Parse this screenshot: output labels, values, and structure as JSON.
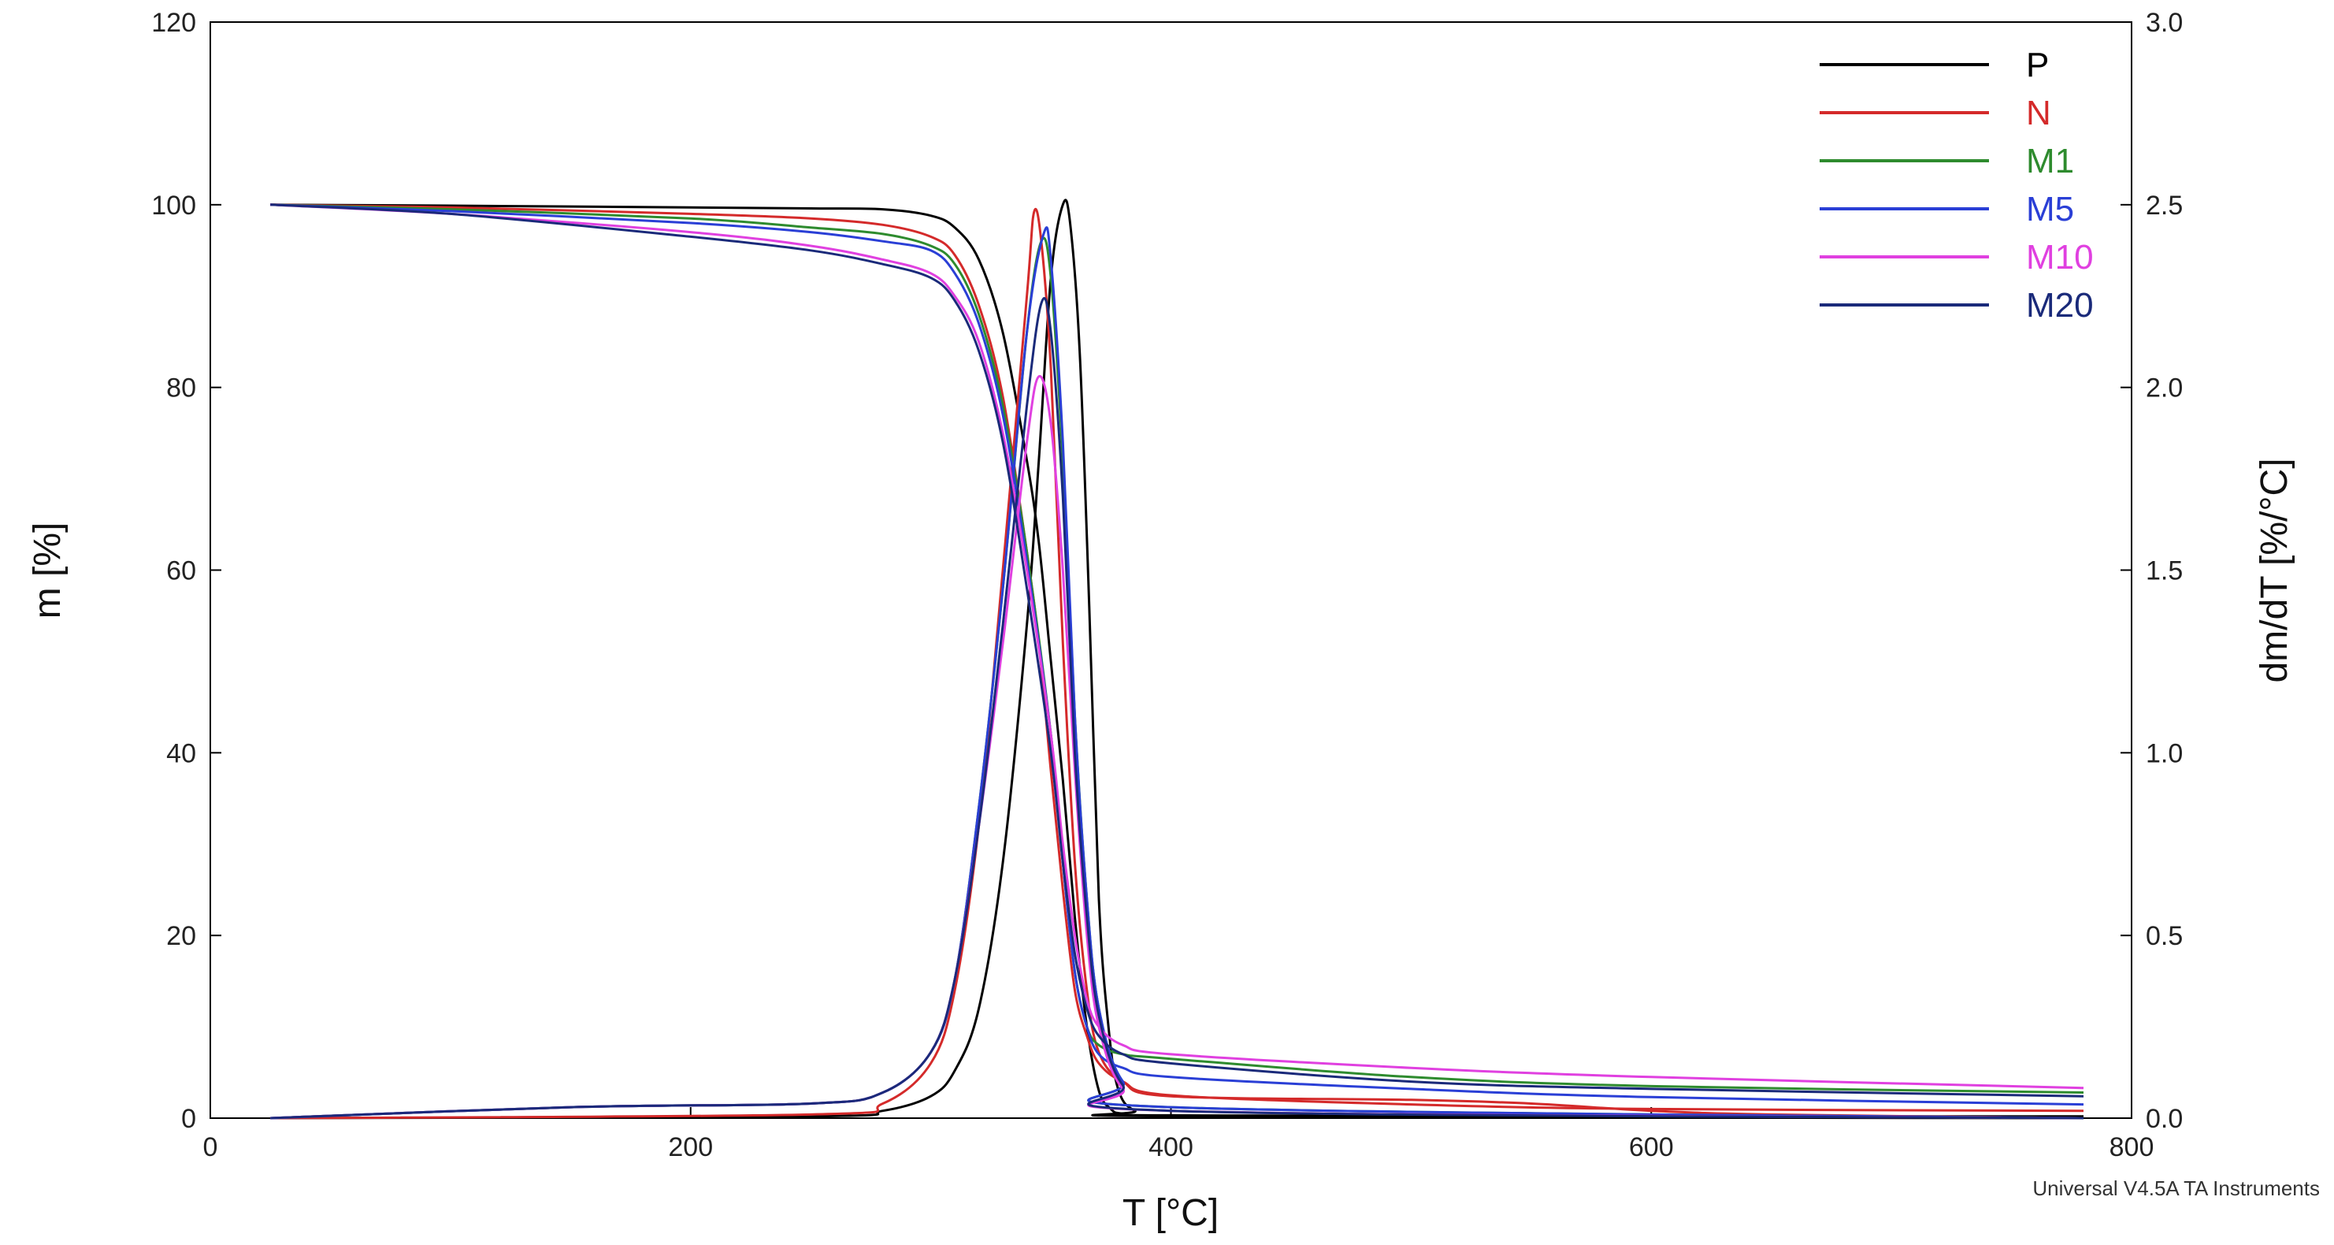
{
  "chart_data": {
    "type": "line",
    "xlabel": "T [°C]",
    "ylabel_left": "m [%]",
    "ylabel_right": "dm/dT [%/°C]",
    "xlim": [
      0,
      800
    ],
    "ylim_left": [
      0,
      120
    ],
    "ylim_right": [
      0.0,
      3.0
    ],
    "x_ticks": [
      "0",
      "200",
      "400",
      "600",
      "800"
    ],
    "y_left_ticks": [
      "0",
      "20",
      "40",
      "60",
      "80",
      "100",
      "120"
    ],
    "y_right_ticks": [
      "0.0",
      "0.5",
      "1.0",
      "1.5",
      "2.0",
      "2.5",
      "3.0"
    ],
    "grid": false,
    "legend_position": "top-right",
    "footer": "Universal V4.5A TA Instruments",
    "series": [
      {
        "name": "P",
        "color": "#000000",
        "mass": [
          [
            25,
            100
          ],
          [
            100,
            99.9
          ],
          [
            200,
            99.7
          ],
          [
            250,
            99.6
          ],
          [
            280,
            99.5
          ],
          [
            300,
            98.8
          ],
          [
            310,
            97.5
          ],
          [
            320,
            94
          ],
          [
            330,
            86
          ],
          [
            340,
            72
          ],
          [
            345,
            63
          ],
          [
            350,
            50
          ],
          [
            355,
            37
          ],
          [
            360,
            22
          ],
          [
            365,
            10
          ],
          [
            370,
            3
          ],
          [
            375,
            1
          ],
          [
            380,
            0.5
          ],
          [
            400,
            0.3
          ],
          [
            600,
            0.2
          ],
          [
            780,
            0.2
          ]
        ],
        "derivative": [
          [
            25,
            0
          ],
          [
            250,
            0.005
          ],
          [
            280,
            0.02
          ],
          [
            300,
            0.06
          ],
          [
            310,
            0.13
          ],
          [
            320,
            0.3
          ],
          [
            330,
            0.7
          ],
          [
            340,
            1.35
          ],
          [
            345,
            1.8
          ],
          [
            350,
            2.3
          ],
          [
            355,
            2.5
          ],
          [
            358,
            2.45
          ],
          [
            362,
            2.1
          ],
          [
            366,
            1.4
          ],
          [
            370,
            0.6
          ],
          [
            374,
            0.25
          ],
          [
            378,
            0.08
          ],
          [
            385,
            0.02
          ],
          [
            400,
            0.005
          ],
          [
            780,
            0
          ]
        ]
      },
      {
        "name": "N",
        "color": "#d42a2a",
        "mass": [
          [
            25,
            100
          ],
          [
            100,
            99.7
          ],
          [
            200,
            99
          ],
          [
            250,
            98.5
          ],
          [
            280,
            97.8
          ],
          [
            300,
            96.5
          ],
          [
            310,
            94.5
          ],
          [
            320,
            89
          ],
          [
            330,
            79
          ],
          [
            340,
            62
          ],
          [
            345,
            52
          ],
          [
            350,
            38
          ],
          [
            355,
            25
          ],
          [
            360,
            14
          ],
          [
            365,
            9
          ],
          [
            370,
            6
          ],
          [
            380,
            4
          ],
          [
            400,
            2.5
          ],
          [
            500,
            1.5
          ],
          [
            600,
            1
          ],
          [
            780,
            0.8
          ]
        ],
        "derivative": [
          [
            25,
            0
          ],
          [
            250,
            0.01
          ],
          [
            280,
            0.04
          ],
          [
            300,
            0.15
          ],
          [
            310,
            0.35
          ],
          [
            320,
            0.8
          ],
          [
            330,
            1.5
          ],
          [
            340,
            2.25
          ],
          [
            343,
            2.48
          ],
          [
            346,
            2.4
          ],
          [
            350,
            2.05
          ],
          [
            355,
            1.3
          ],
          [
            360,
            0.7
          ],
          [
            365,
            0.35
          ],
          [
            370,
            0.18
          ],
          [
            380,
            0.1
          ],
          [
            400,
            0.06
          ],
          [
            500,
            0.05
          ],
          [
            550,
            0.04
          ],
          [
            600,
            0.02
          ],
          [
            650,
            0.01
          ],
          [
            780,
            0
          ]
        ]
      },
      {
        "name": "M1",
        "color": "#2e8b2e",
        "mass": [
          [
            25,
            100
          ],
          [
            100,
            99.5
          ],
          [
            200,
            98.5
          ],
          [
            250,
            97.5
          ],
          [
            280,
            96.8
          ],
          [
            300,
            95.5
          ],
          [
            310,
            93.5
          ],
          [
            320,
            88
          ],
          [
            330,
            78
          ],
          [
            340,
            62
          ],
          [
            350,
            42
          ],
          [
            355,
            28
          ],
          [
            360,
            16
          ],
          [
            365,
            10
          ],
          [
            370,
            8
          ],
          [
            380,
            7
          ],
          [
            400,
            6.5
          ],
          [
            500,
            4.5
          ],
          [
            600,
            3.5
          ],
          [
            780,
            2.8
          ]
        ],
        "derivative": [
          [
            25,
            0
          ],
          [
            150,
            0.03
          ],
          [
            250,
            0.04
          ],
          [
            280,
            0.07
          ],
          [
            300,
            0.18
          ],
          [
            310,
            0.38
          ],
          [
            320,
            0.85
          ],
          [
            330,
            1.45
          ],
          [
            340,
            2.15
          ],
          [
            346,
            2.4
          ],
          [
            350,
            2.3
          ],
          [
            355,
            1.8
          ],
          [
            360,
            1.1
          ],
          [
            365,
            0.6
          ],
          [
            370,
            0.3
          ],
          [
            380,
            0.1
          ],
          [
            400,
            0.03
          ],
          [
            780,
            0
          ]
        ]
      },
      {
        "name": "M5",
        "color": "#2a3fd6",
        "mass": [
          [
            25,
            100
          ],
          [
            100,
            99.3
          ],
          [
            200,
            98
          ],
          [
            250,
            97
          ],
          [
            280,
            96
          ],
          [
            300,
            95
          ],
          [
            310,
            92.5
          ],
          [
            320,
            87
          ],
          [
            330,
            77
          ],
          [
            340,
            61
          ],
          [
            350,
            42
          ],
          [
            355,
            28
          ],
          [
            360,
            16
          ],
          [
            365,
            10
          ],
          [
            370,
            7
          ],
          [
            380,
            5.5
          ],
          [
            400,
            4.5
          ],
          [
            500,
            3.2
          ],
          [
            600,
            2.3
          ],
          [
            780,
            1.5
          ]
        ],
        "derivative": [
          [
            25,
            0
          ],
          [
            150,
            0.03
          ],
          [
            250,
            0.04
          ],
          [
            280,
            0.07
          ],
          [
            300,
            0.18
          ],
          [
            310,
            0.38
          ],
          [
            320,
            0.85
          ],
          [
            330,
            1.45
          ],
          [
            340,
            2.15
          ],
          [
            347,
            2.42
          ],
          [
            350,
            2.35
          ],
          [
            355,
            1.85
          ],
          [
            360,
            1.1
          ],
          [
            365,
            0.6
          ],
          [
            370,
            0.3
          ],
          [
            380,
            0.1
          ],
          [
            400,
            0.03
          ],
          [
            780,
            0
          ]
        ]
      },
      {
        "name": "M10",
        "color": "#e040e0",
        "mass": [
          [
            25,
            100
          ],
          [
            100,
            99
          ],
          [
            200,
            97
          ],
          [
            250,
            95.5
          ],
          [
            280,
            94
          ],
          [
            300,
            92.5
          ],
          [
            310,
            90
          ],
          [
            320,
            85
          ],
          [
            330,
            75
          ],
          [
            340,
            60
          ],
          [
            350,
            42
          ],
          [
            355,
            30
          ],
          [
            360,
            20
          ],
          [
            365,
            13
          ],
          [
            370,
            10
          ],
          [
            380,
            8
          ],
          [
            400,
            7
          ],
          [
            500,
            5.5
          ],
          [
            600,
            4.5
          ],
          [
            780,
            3.3
          ]
        ],
        "derivative": [
          [
            25,
            0
          ],
          [
            150,
            0.03
          ],
          [
            250,
            0.04
          ],
          [
            280,
            0.07
          ],
          [
            300,
            0.18
          ],
          [
            310,
            0.38
          ],
          [
            320,
            0.8
          ],
          [
            330,
            1.3
          ],
          [
            340,
            1.85
          ],
          [
            345,
            2.03
          ],
          [
            350,
            1.9
          ],
          [
            355,
            1.5
          ],
          [
            360,
            0.95
          ],
          [
            365,
            0.5
          ],
          [
            370,
            0.25
          ],
          [
            380,
            0.08
          ],
          [
            400,
            0.02
          ],
          [
            780,
            0
          ]
        ]
      },
      {
        "name": "M20",
        "color": "#1a2a7a",
        "mass": [
          [
            25,
            100
          ],
          [
            100,
            99
          ],
          [
            200,
            96.5
          ],
          [
            250,
            95
          ],
          [
            280,
            93.5
          ],
          [
            300,
            92
          ],
          [
            310,
            89.5
          ],
          [
            320,
            84
          ],
          [
            330,
            74
          ],
          [
            340,
            58
          ],
          [
            350,
            40
          ],
          [
            355,
            28
          ],
          [
            360,
            18
          ],
          [
            365,
            12
          ],
          [
            370,
            9
          ],
          [
            380,
            7
          ],
          [
            400,
            6
          ],
          [
            500,
            4
          ],
          [
            600,
            3.2
          ],
          [
            780,
            2.4
          ]
        ],
        "derivative": [
          [
            25,
            0
          ],
          [
            150,
            0.03
          ],
          [
            250,
            0.04
          ],
          [
            280,
            0.07
          ],
          [
            300,
            0.18
          ],
          [
            310,
            0.38
          ],
          [
            320,
            0.8
          ],
          [
            330,
            1.35
          ],
          [
            340,
            1.95
          ],
          [
            346,
            2.23
          ],
          [
            350,
            2.15
          ],
          [
            355,
            1.7
          ],
          [
            360,
            1.0
          ],
          [
            365,
            0.55
          ],
          [
            370,
            0.28
          ],
          [
            380,
            0.09
          ],
          [
            400,
            0.02
          ],
          [
            780,
            0
          ]
        ]
      }
    ]
  }
}
